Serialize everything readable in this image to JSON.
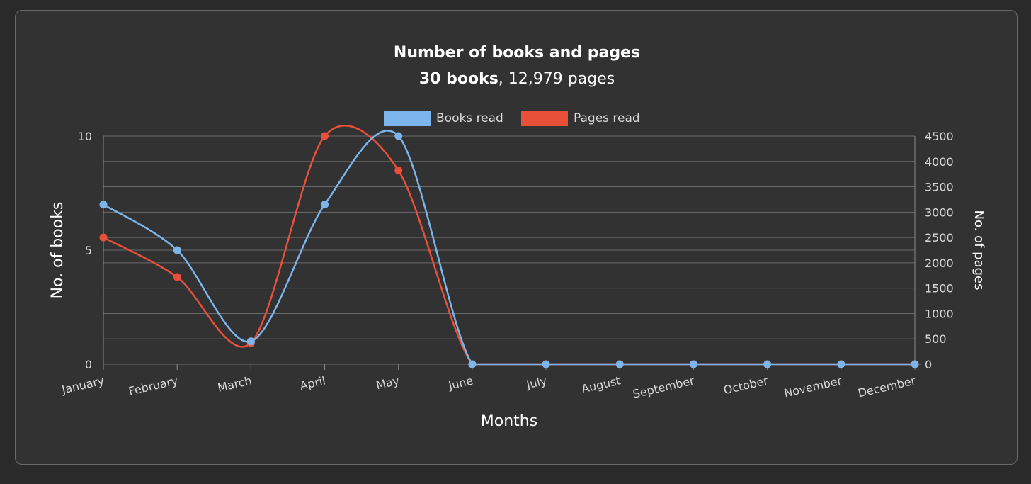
{
  "chart_data": {
    "type": "line",
    "title": "Number of books and pages",
    "subtitle": {
      "books": "30 books",
      "pages": ", 12,979 pages"
    },
    "xlabel": "Months",
    "ylabel_left": "No. of books",
    "ylabel_right": "No. of pages",
    "categories": [
      "January",
      "February",
      "March",
      "April",
      "May",
      "June",
      "July",
      "August",
      "September",
      "October",
      "November",
      "December"
    ],
    "y_left": {
      "lim": [
        0,
        10
      ],
      "ticks": [
        0,
        5,
        10
      ]
    },
    "y_right": {
      "lim": [
        0,
        4500
      ],
      "ticks": [
        0,
        500,
        1000,
        1500,
        2000,
        2500,
        3000,
        3500,
        4000,
        4500
      ]
    },
    "legend_position": "top-center",
    "grid": true,
    "series": [
      {
        "name": "Books read",
        "axis": "left",
        "color": "#7cb5ec",
        "values": [
          7,
          5,
          1,
          7,
          10,
          0,
          0,
          0,
          0,
          0,
          0,
          0
        ]
      },
      {
        "name": "Pages read",
        "axis": "right",
        "color": "#e8503a",
        "values": [
          2500,
          1720,
          420,
          4500,
          3820,
          0,
          0,
          0,
          0,
          0,
          0,
          0
        ]
      }
    ]
  }
}
